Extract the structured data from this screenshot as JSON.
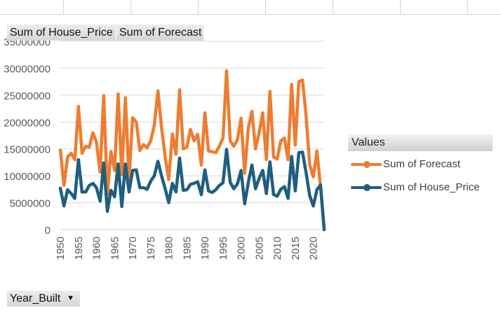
{
  "buttons": {
    "price": "Sum of House_Price",
    "forecast": "Sum of Forecast",
    "axis_field": "Year_Built",
    "axis_dropdown_icon": "triangle-down-icon"
  },
  "legend": {
    "title": "Values",
    "items": [
      {
        "label": "Sum of Forecast",
        "color": "#ED7D31"
      },
      {
        "label": "Sum of House_Price",
        "color": "#1F5F7F"
      }
    ]
  },
  "chart_data": {
    "type": "line",
    "xlabel": "",
    "ylabel": "",
    "ylim": [
      0,
      35000000
    ],
    "yticks": [
      "0",
      "5000000",
      "10000000",
      "15000000",
      "20000000",
      "25000000",
      "30000000",
      "35000000"
    ],
    "xticks": [
      "1950",
      "1955",
      "1960",
      "1965",
      "1970",
      "1975",
      "1980",
      "1985",
      "1990",
      "1995",
      "2000",
      "2005",
      "2010",
      "2015",
      "2020"
    ],
    "x": [
      1950,
      1951,
      1952,
      1953,
      1954,
      1955,
      1956,
      1957,
      1958,
      1959,
      1960,
      1961,
      1962,
      1963,
      1964,
      1965,
      1966,
      1967,
      1968,
      1969,
      1970,
      1971,
      1972,
      1973,
      1974,
      1975,
      1976,
      1977,
      1978,
      1979,
      1980,
      1981,
      1982,
      1983,
      1984,
      1985,
      1986,
      1987,
      1988,
      1989,
      1990,
      1991,
      1992,
      1993,
      1994,
      1995,
      1996,
      1997,
      1998,
      1999,
      2000,
      2001,
      2002,
      2003,
      2004,
      2005,
      2006,
      2007,
      2008,
      2009,
      2010,
      2011,
      2012,
      2013,
      2014,
      2015,
      2016,
      2017,
      2018,
      2019,
      2020,
      2021,
      2022,
      2023
    ],
    "grid": true,
    "legend_position": "right",
    "series": [
      {
        "name": "Sum of Forecast",
        "color": "#ED7D31",
        "values": [
          14800000,
          8200000,
          13500000,
          14200000,
          13000000,
          22900000,
          14200000,
          15500000,
          15300000,
          18000000,
          16200000,
          10700000,
          24900000,
          6500000,
          14500000,
          11000000,
          25200000,
          10200000,
          24500000,
          9400000,
          20800000,
          20000000,
          14700000,
          15800000,
          15200000,
          16500000,
          19400000,
          25800000,
          19000000,
          13500000,
          9300000,
          17800000,
          14000000,
          26000000,
          15000000,
          15300000,
          18600000,
          16500000,
          17700000,
          12000000,
          21700000,
          14600000,
          14500000,
          14300000,
          15500000,
          17000000,
          29500000,
          16500000,
          15500000,
          16700000,
          20700000,
          10500000,
          18800000,
          22000000,
          15000000,
          18000000,
          21700000,
          13000000,
          25700000,
          13500000,
          13100000,
          16500000,
          17000000,
          13000000,
          27000000,
          15700000,
          27500000,
          27800000,
          21200000,
          12000000,
          9800000,
          14600000,
          8000000,
          0
        ]
      },
      {
        "name": "Sum of House_Price",
        "color": "#1F5F7F",
        "values": [
          7700000,
          4400000,
          7400000,
          6700000,
          5800000,
          13000000,
          7000000,
          7000000,
          8200000,
          8600000,
          7800000,
          5300000,
          12400000,
          3400000,
          7300000,
          6100000,
          12200000,
          4300000,
          12200000,
          7000000,
          11000000,
          11100000,
          7800000,
          7800000,
          7500000,
          9000000,
          10000000,
          12700000,
          10000000,
          7600000,
          5000000,
          8600000,
          7000000,
          13300000,
          7300000,
          7400000,
          8400000,
          8600000,
          8900000,
          6500000,
          11100000,
          7200000,
          6900000,
          7400000,
          8200000,
          8700000,
          14900000,
          8800000,
          7600000,
          8500000,
          11000000,
          4800000,
          8700000,
          12000000,
          7600000,
          9500000,
          11000000,
          6700000,
          12600000,
          6500000,
          6200000,
          7500000,
          8000000,
          5800000,
          13600000,
          7200000,
          14300000,
          14400000,
          10600000,
          6300000,
          4400000,
          7400000,
          8300000,
          0
        ]
      }
    ]
  }
}
